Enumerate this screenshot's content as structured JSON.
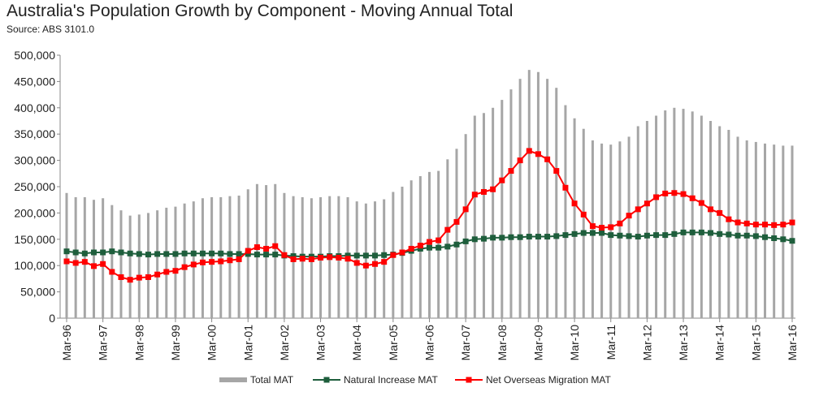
{
  "chart_data": {
    "type": "bar-line",
    "title": "Australia's Population Growth by Component - Moving Annual Total",
    "subtitle": "Source: ABS 3101.0",
    "categories": [
      "Mar-96",
      null,
      null,
      null,
      "Mar-97",
      null,
      null,
      null,
      "Mar-98",
      null,
      null,
      null,
      "Mar-99",
      null,
      null,
      null,
      "Mar-00",
      null,
      null,
      null,
      "Mar-01",
      null,
      null,
      null,
      "Mar-02",
      null,
      null,
      null,
      "Mar-03",
      null,
      null,
      null,
      "Mar-04",
      null,
      null,
      null,
      "Mar-05",
      null,
      null,
      null,
      "Mar-06",
      null,
      null,
      null,
      "Mar-07",
      null,
      null,
      null,
      "Mar-08",
      null,
      null,
      null,
      "Mar-09",
      null,
      null,
      null,
      "Mar-10",
      null,
      null,
      null,
      "Mar-11",
      null,
      null,
      null,
      "Mar-12",
      null,
      null,
      null,
      "Mar-13",
      null,
      null,
      null,
      "Mar-14",
      null,
      null,
      null,
      "Mar-15",
      null,
      null,
      null,
      "Mar-16"
    ],
    "series": [
      {
        "name": "Total MAT",
        "type": "bar",
        "color": "#a6a6a6",
        "values": [
          238000,
          230000,
          230000,
          225000,
          228000,
          215000,
          205000,
          195000,
          197000,
          200000,
          205000,
          210000,
          212000,
          218000,
          222000,
          228000,
          230000,
          230000,
          232000,
          233000,
          245000,
          255000,
          253000,
          255000,
          238000,
          232000,
          230000,
          228000,
          230000,
          232000,
          232000,
          230000,
          222000,
          218000,
          222000,
          226000,
          240000,
          250000,
          262000,
          270000,
          278000,
          280000,
          302000,
          322000,
          350000,
          385000,
          390000,
          400000,
          415000,
          435000,
          455000,
          472000,
          468000,
          455000,
          438000,
          405000,
          380000,
          360000,
          338000,
          332000,
          330000,
          336000,
          345000,
          365000,
          375000,
          385000,
          395000,
          400000,
          398000,
          393000,
          385000,
          375000,
          365000,
          358000,
          345000,
          338000,
          335000,
          332000,
          330000,
          328000,
          328000
        ]
      },
      {
        "name": "Natural Increase MAT",
        "type": "line",
        "color": "#1e5e3c",
        "values": [
          127000,
          125000,
          123000,
          125000,
          125000,
          127000,
          125000,
          123000,
          122000,
          121000,
          122000,
          122000,
          122000,
          123000,
          123000,
          123000,
          123000,
          123000,
          122000,
          122000,
          122000,
          121000,
          121000,
          121000,
          119000,
          118000,
          117000,
          117000,
          117000,
          118000,
          118000,
          119000,
          119000,
          119000,
          119000,
          120000,
          121000,
          124000,
          128000,
          132000,
          134000,
          134000,
          136000,
          140000,
          146000,
          150000,
          151000,
          153000,
          153000,
          154000,
          154000,
          155000,
          155000,
          155000,
          156000,
          158000,
          160000,
          162000,
          162000,
          162000,
          158000,
          157000,
          156000,
          155000,
          157000,
          158000,
          158000,
          160000,
          163000,
          163000,
          163000,
          162000,
          160000,
          159000,
          157000,
          157000,
          156000,
          154000,
          152000,
          150000,
          147000
        ]
      },
      {
        "name": "Net Overseas Migration MAT",
        "type": "line",
        "color": "#ff0000",
        "values": [
          108000,
          105000,
          107000,
          99000,
          103000,
          88000,
          78000,
          73000,
          77000,
          78000,
          83000,
          88000,
          90000,
          97000,
          102000,
          106000,
          107000,
          108000,
          110000,
          112000,
          128000,
          135000,
          132000,
          137000,
          120000,
          112000,
          113000,
          112000,
          115000,
          116000,
          115000,
          113000,
          105000,
          100000,
          103000,
          107000,
          120000,
          125000,
          132000,
          138000,
          145000,
          148000,
          168000,
          183000,
          207000,
          235000,
          240000,
          245000,
          262000,
          280000,
          300000,
          318000,
          312000,
          302000,
          280000,
          248000,
          218000,
          197000,
          175000,
          172000,
          173000,
          180000,
          195000,
          207000,
          218000,
          230000,
          237000,
          238000,
          236000,
          228000,
          219000,
          207000,
          200000,
          188000,
          182000,
          180000,
          178000,
          178000,
          177000,
          178000,
          182000
        ]
      }
    ],
    "ylim": [
      0,
      500000
    ],
    "yticks": [
      0,
      {
        "value": 50000,
        "label": "50,000"
      },
      {
        "value": 100000,
        "label": "100,000"
      },
      {
        "value": 150000,
        "label": "150,000"
      },
      {
        "value": 200000,
        "label": "200,000"
      },
      {
        "value": 250000,
        "label": "250,000"
      },
      {
        "value": 300000,
        "label": "300,000"
      },
      {
        "value": 350000,
        "label": "350,000"
      },
      {
        "value": 400000,
        "label": "400,000"
      },
      {
        "value": 450000,
        "label": "450,000"
      },
      {
        "value": 500000,
        "label": "500,000"
      }
    ],
    "legend": "bottom"
  }
}
